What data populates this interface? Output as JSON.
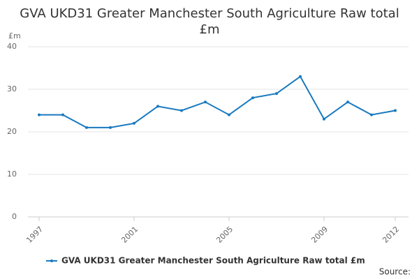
{
  "chart_data": {
    "type": "line",
    "title": "GVA UKD31 Greater Manchester South Agriculture Raw total £m",
    "y_label": "£m",
    "x": [
      1997,
      1998,
      1999,
      2000,
      2001,
      2002,
      2003,
      2004,
      2005,
      2006,
      2007,
      2008,
      2009,
      2010,
      2011,
      2012
    ],
    "series": [
      {
        "name": "GVA UKD31 Greater Manchester South Agriculture Raw total £m",
        "color": "#1879bf",
        "values": [
          24,
          24,
          21,
          21,
          22,
          26,
          25,
          27,
          24,
          28,
          29,
          33,
          23,
          27,
          24,
          25
        ]
      }
    ],
    "xlim": [
      1997,
      2012
    ],
    "xticks": [
      1997,
      2001,
      2005,
      2009,
      2012
    ],
    "ylim": [
      0,
      40
    ],
    "yticks": [
      0,
      10,
      20,
      30,
      40
    ],
    "grid": true,
    "legend": "bottom",
    "source": "Source:"
  }
}
